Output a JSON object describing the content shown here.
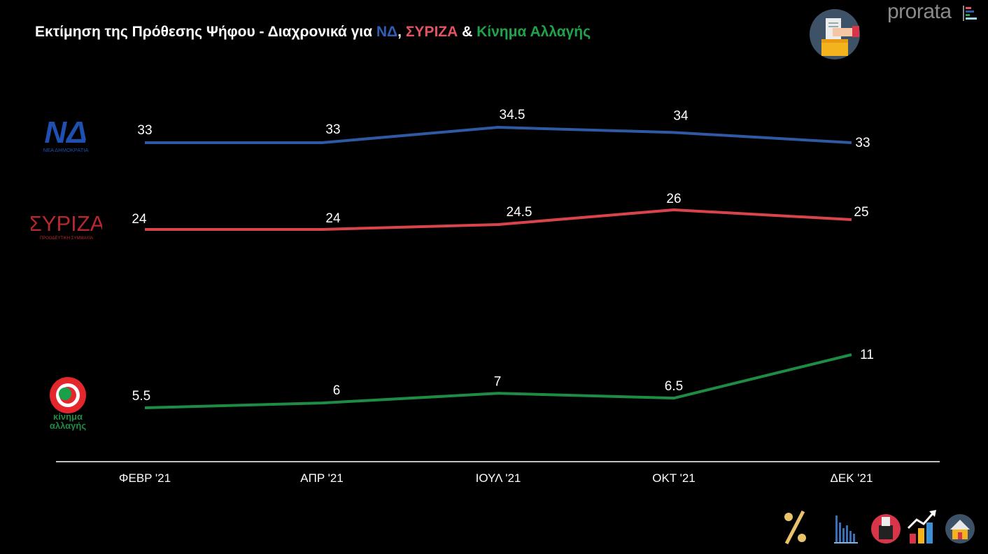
{
  "title": {
    "prefix": "Εκτίμηση της Πρόθεσης Ψήφου - Διαχρονικά για ",
    "nd": "ΝΔ",
    "sep1": ", ",
    "syriza": "ΣΥΡΙΖΑ",
    "sep2": " & ",
    "kinal": "Κίνημα Αλλαγής"
  },
  "brand": "prorata",
  "logos": {
    "nd": {
      "text": "ΝΔ",
      "subtitle": "ΝΕΑ ΔΗΜΟΚΡΑΤΙΑ"
    },
    "syriza": {
      "text": "ΣΥΡΙΖΑ",
      "subtitle": "ΠΡΟΟΔΕΥΤΙΚΗ ΣΥΜΜΑΧΙΑ"
    },
    "kinal": {
      "line1": "κίνημα",
      "line2": "αλλαγής"
    }
  },
  "colors": {
    "nd": "#2f5aa3",
    "syriza": "#d9444c",
    "kinal": "#1e8c45",
    "background": "#000000",
    "axis": "#ffffff"
  },
  "chart_data": {
    "type": "line",
    "title": "Εκτίμηση της Πρόθεσης Ψήφου - Διαχρονικά για ΝΔ, ΣΥΡΙΖΑ & Κίνημα Αλλαγής",
    "categories": [
      "ΦΕΒΡ '21",
      "ΑΠΡ '21",
      "ΙΟΥΛ '21",
      "ΟΚΤ '21",
      "ΔΕΚ '21"
    ],
    "series": [
      {
        "name": "ΝΔ",
        "key": "nd",
        "values": [
          33,
          33,
          34.5,
          34,
          33
        ]
      },
      {
        "name": "ΣΥΡΙΖΑ",
        "key": "syriza",
        "values": [
          24,
          24,
          24.5,
          26,
          25
        ]
      },
      {
        "name": "Κίνημα Αλλαγής",
        "key": "kinal",
        "values": [
          5.5,
          6,
          7,
          6.5,
          11
        ]
      }
    ],
    "xlabel": "",
    "ylabel": "",
    "ylim": [
      0,
      37
    ],
    "grid": false,
    "legend": "logos-left"
  },
  "icons": [
    "percent-icon",
    "bar-chart-icon",
    "ballot-box-icon",
    "trend-up-icon",
    "house-icon"
  ]
}
